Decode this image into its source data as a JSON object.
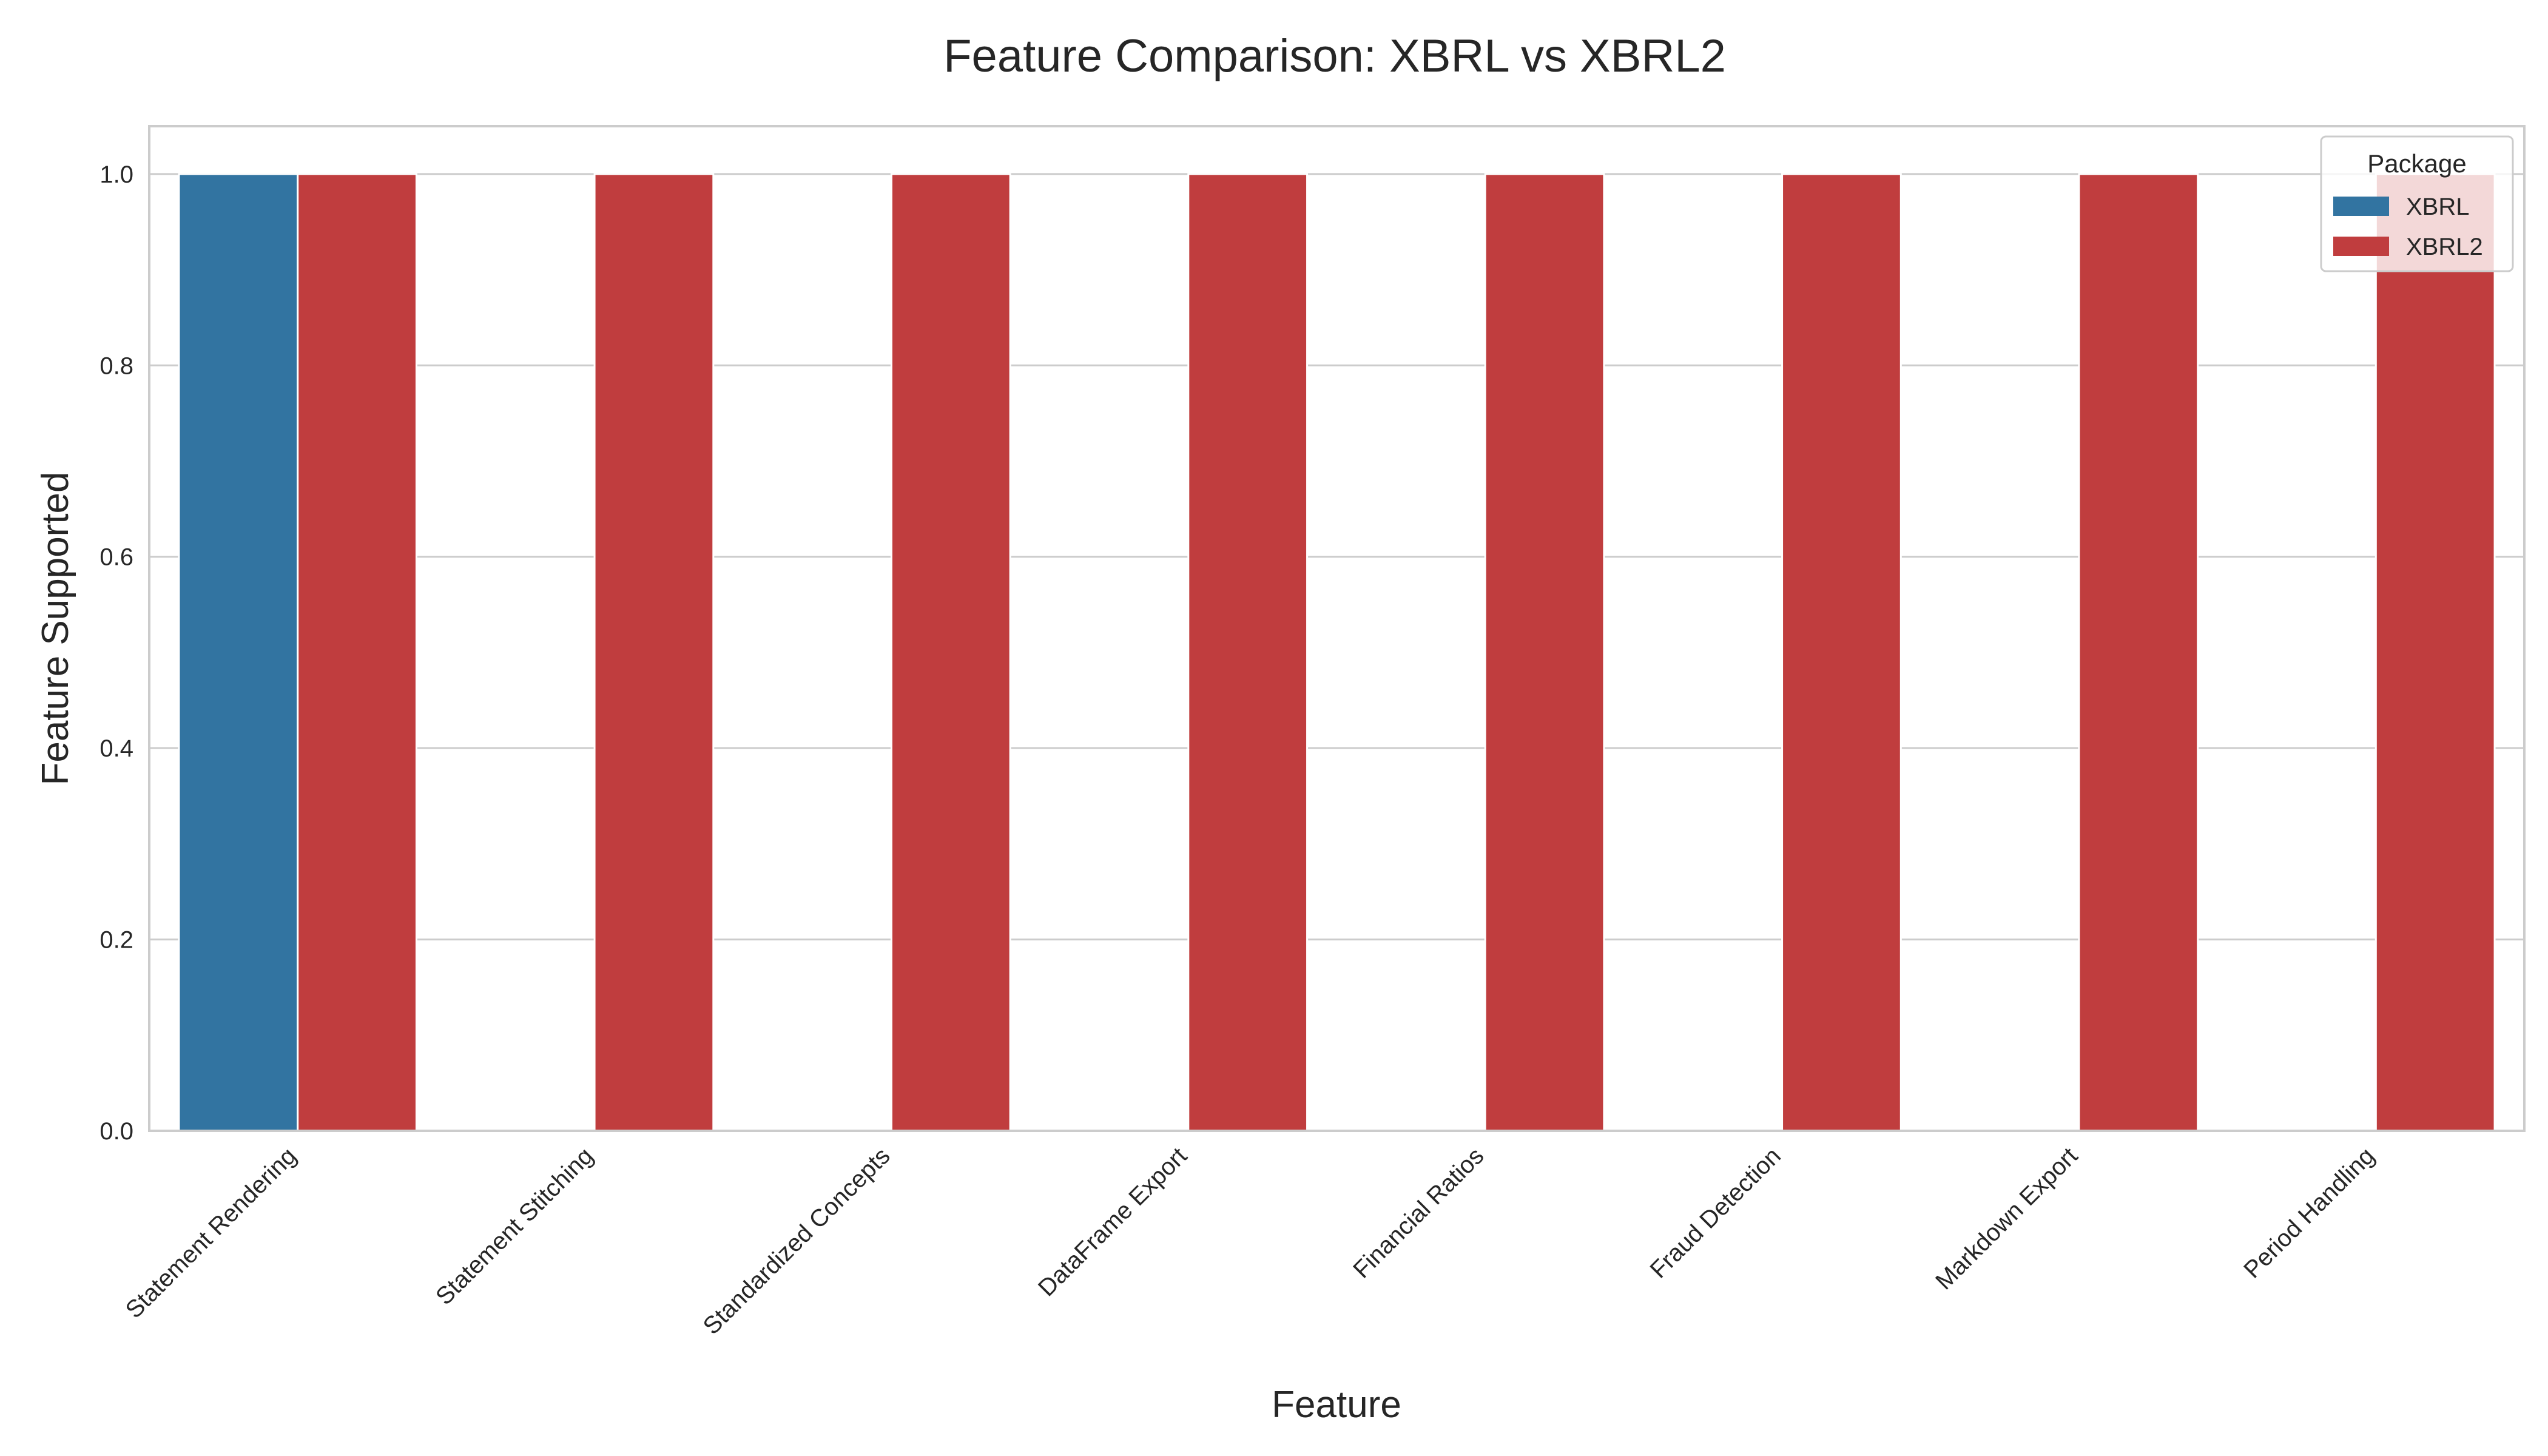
{
  "chart_data": {
    "type": "bar",
    "title": "Feature Comparison: XBRL vs XBRL2",
    "xlabel": "Feature",
    "ylabel": "Feature Supported",
    "categories": [
      "Statement Rendering",
      "Statement Stitching",
      "Standardized Concepts",
      "DataFrame Export",
      "Financial Ratios",
      "Fraud Detection",
      "Markdown Export",
      "Period Handling"
    ],
    "series": [
      {
        "name": "XBRL",
        "color": "#3274a1",
        "values": [
          1,
          0,
          0,
          0,
          0,
          0,
          0,
          0
        ]
      },
      {
        "name": "XBRL2",
        "color": "#c03d3e",
        "values": [
          1,
          1,
          1,
          1,
          1,
          1,
          1,
          1
        ]
      }
    ],
    "ylim": [
      0,
      1.05
    ],
    "yticks": [
      0.0,
      0.2,
      0.4,
      0.6,
      0.8,
      1.0
    ],
    "ytick_labels": [
      "0.0",
      "0.2",
      "0.4",
      "0.6",
      "0.8",
      "1.0"
    ],
    "grid": true,
    "grid_axis": "y",
    "legend": {
      "title": "Package",
      "placement": "top-right"
    }
  }
}
